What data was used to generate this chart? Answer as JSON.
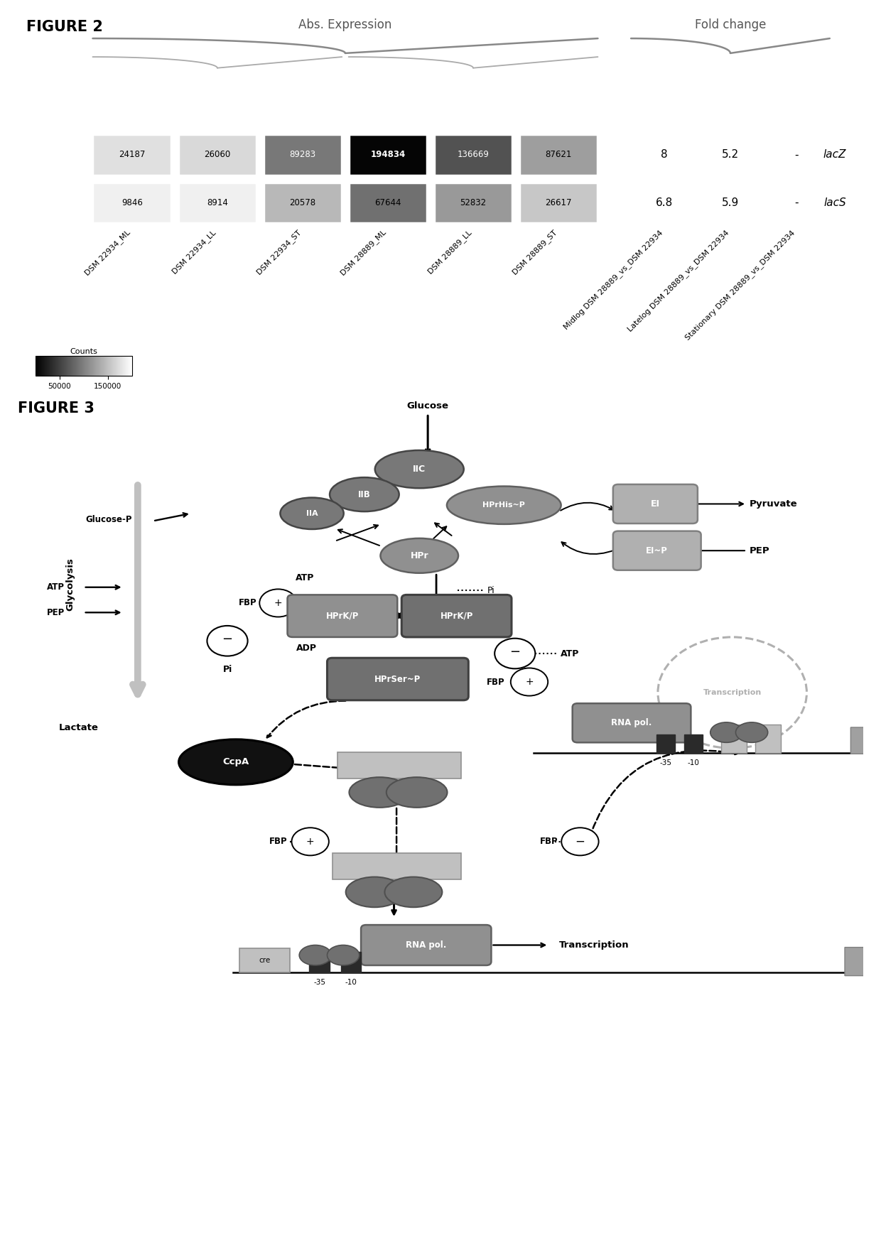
{
  "figure2": {
    "title": "FIGURE 2",
    "abs_expression_label": "Abs. Expression",
    "fold_change_label": "Fold change",
    "row1_values": [
      "24187",
      "26060",
      "89283",
      "194834",
      "136669",
      "87621",
      "8",
      "5.2",
      "-"
    ],
    "row2_values": [
      "9846",
      "8914",
      "20578",
      "67644",
      "52832",
      "26617",
      "6.8",
      "5.9",
      "-"
    ],
    "row_labels": [
      "lacZ",
      "lacS"
    ],
    "col_labels_abs": [
      "DSM 22934_ML",
      "DSM 22934_LL",
      "DSM 22934_ST",
      "DSM 28889_ML",
      "DSM 28889_LL",
      "DSM 28889_ST"
    ],
    "col_labels_fold": [
      "Midlog DSM 28889_vs_DSM 22934",
      "Latelog DSM 28889_vs_DSM 22934",
      "Stationary DSM 28889_vs_DSM 22934"
    ],
    "colorbar_label": "Counts",
    "colorbar_ticks": [
      50000,
      150000
    ],
    "row1_grays": [
      0.88,
      0.85,
      0.47,
      0.02,
      0.32,
      0.62
    ],
    "row2_grays": [
      0.94,
      0.94,
      0.72,
      0.44,
      0.6,
      0.78
    ],
    "row1_text_white": [
      false,
      false,
      true,
      true,
      true,
      false
    ],
    "row2_text_white": [
      false,
      false,
      false,
      false,
      false,
      false
    ]
  },
  "figure3": {
    "title": "FIGURE 3"
  }
}
